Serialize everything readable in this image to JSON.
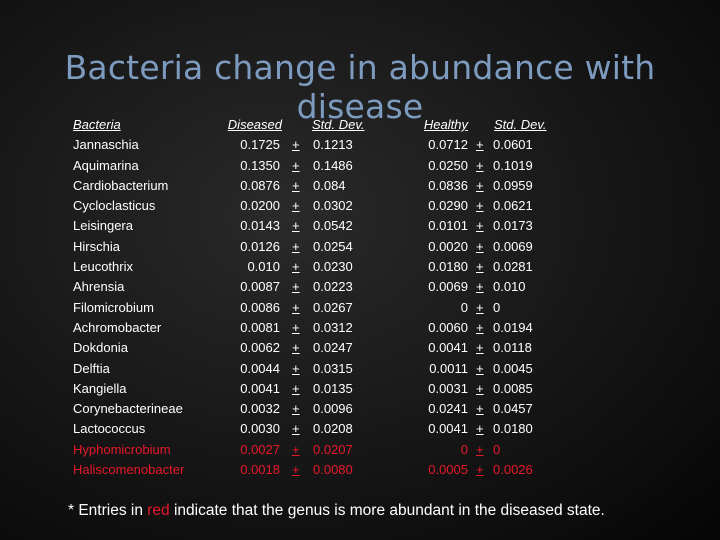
{
  "title": "Bacteria change in abundance with disease",
  "headers": {
    "bacteria": "Bacteria",
    "diseased": "Diseased",
    "std_dev_1": "Std. Dev.",
    "healthy": "Healthy",
    "std_dev_2": "Std. Dev."
  },
  "pm": "+",
  "rows": [
    {
      "name": "Jannaschia",
      "diseased": "0.1725",
      "sd1": "0.1213",
      "healthy": "0.0712",
      "sd2": "0.0601",
      "red": false
    },
    {
      "name": "Aquimarina",
      "diseased": "0.1350",
      "sd1": "0.1486",
      "healthy": "0.0250",
      "sd2": "0.1019",
      "red": false
    },
    {
      "name": "Cardiobacterium",
      "diseased": "0.0876",
      "sd1": "0.084",
      "healthy": "0.0836",
      "sd2": "0.0959",
      "red": false
    },
    {
      "name": "Cycloclasticus",
      "diseased": "0.0200",
      "sd1": "0.0302",
      "healthy": "0.0290",
      "sd2": "0.0621",
      "red": false
    },
    {
      "name": "Leisingera",
      "diseased": "0.0143",
      "sd1": "0.0542",
      "healthy": "0.0101",
      "sd2": "0.0173",
      "red": false
    },
    {
      "name": "Hirschia",
      "diseased": "0.0126",
      "sd1": "0.0254",
      "healthy": "0.0020",
      "sd2": "0.0069",
      "red": false
    },
    {
      "name": "Leucothrix",
      "diseased": "0.010",
      "sd1": "0.0230",
      "healthy": "0.0180",
      "sd2": "0.0281",
      "red": false
    },
    {
      "name": "Ahrensia",
      "diseased": "0.0087",
      "sd1": "0.0223",
      "healthy": "0.0069",
      "sd2": "0.010",
      "red": false
    },
    {
      "name": "Filomicrobium",
      "diseased": "0.0086",
      "sd1": "0.0267",
      "healthy": "0",
      "sd2": "0",
      "red": false
    },
    {
      "name": "Achromobacter",
      "diseased": "0.0081",
      "sd1": "0.0312",
      "healthy": "0.0060",
      "sd2": "0.0194",
      "red": false
    },
    {
      "name": "Dokdonia",
      "diseased": "0.0062",
      "sd1": "0.0247",
      "healthy": "0.0041",
      "sd2": "0.0118",
      "red": false
    },
    {
      "name": "Delftia",
      "diseased": "0.0044",
      "sd1": "0.0315",
      "healthy": "0.0011",
      "sd2": "0.0045",
      "red": false
    },
    {
      "name": "Kangiella",
      "diseased": "0.0041",
      "sd1": "0.0135",
      "healthy": "0.0031",
      "sd2": "0.0085",
      "red": false
    },
    {
      "name": "Corynebacterineae",
      "diseased": "0.0032",
      "sd1": "0.0096",
      "healthy": "0.0241",
      "sd2": "0.0457",
      "red": false
    },
    {
      "name": "Lactococcus",
      "diseased": "0.0030",
      "sd1": "0.0208",
      "healthy": "0.0041",
      "sd2": "0.0180",
      "red": false
    },
    {
      "name": "Hyphomicrobium",
      "diseased": "0.0027",
      "sd1": "0.0207",
      "healthy": "0",
      "sd2": "0",
      "red": true
    },
    {
      "name": "Haliscomenobacter",
      "diseased": "0.0018",
      "sd1": "0.0080",
      "healthy": "0.0005",
      "sd2": "0.0026",
      "red": true
    }
  ],
  "footnote": {
    "before": "* Entries in ",
    "red_word": "red",
    "after": " indicate that the genus is more abundant in the diseased state."
  },
  "colors": {
    "title": "#7d9bbf",
    "text": "#ffffff",
    "highlight": "#e8182a",
    "background": "#141414"
  }
}
